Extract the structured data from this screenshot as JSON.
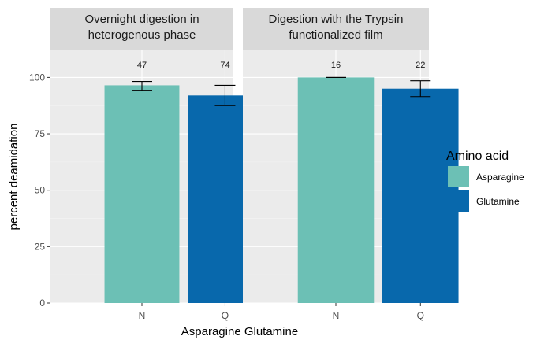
{
  "chart_data": {
    "type": "bar",
    "xlabel": "Asparagine Glutamine",
    "ylabel": "percent deamidation",
    "ylim": [
      0,
      112
    ],
    "yticks": [
      0,
      25,
      50,
      75,
      100
    ],
    "grid": true,
    "legend": {
      "title": "Amino acid",
      "position": "right",
      "entries": [
        {
          "name": "Asparagine",
          "color": "#6cc0b5"
        },
        {
          "name": "Glutamine",
          "color": "#0868ac"
        }
      ]
    },
    "panels": [
      {
        "title_lines": [
          "Overnight digestion in",
          "heterogenous phase"
        ],
        "bars": [
          {
            "category": "N",
            "series": "Asparagine",
            "value": 96.5,
            "err_low": 94.3,
            "err_high": 98.2,
            "count": "47"
          },
          {
            "category": "Q",
            "series": "Glutamine",
            "value": 92.0,
            "err_low": 87.5,
            "err_high": 96.5,
            "count": "74"
          }
        ]
      },
      {
        "title_lines": [
          "Digestion with the Trypsin",
          "functionalized film"
        ],
        "bars": [
          {
            "category": "N",
            "series": "Asparagine",
            "value": 100.0,
            "err_low": 100.0,
            "err_high": 100.0,
            "count": "16"
          },
          {
            "category": "Q",
            "series": "Glutamine",
            "value": 95.0,
            "err_low": 91.5,
            "err_high": 98.5,
            "count": "22"
          }
        ]
      }
    ]
  }
}
